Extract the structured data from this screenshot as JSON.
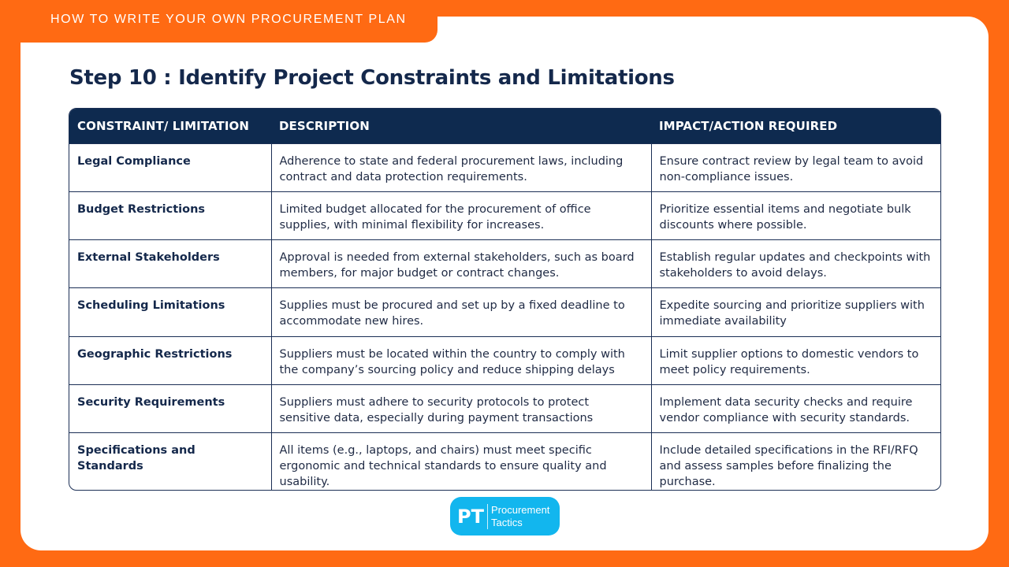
{
  "header": {
    "label": "HOW TO WRITE YOUR OWN PROCUREMENT PLAN"
  },
  "page": {
    "title": "Step 10 : Identify Project Constraints and Limitations"
  },
  "table": {
    "columns": [
      "CONSTRAINT/ LIMITATION",
      "DESCRIPTION",
      "IMPACT/ACTION REQUIRED"
    ],
    "rows": [
      [
        "Legal Compliance",
        "Adherence to state and federal procurement laws, including contract and data protection requirements.",
        "Ensure contract review by legal team to avoid non-compliance issues."
      ],
      [
        "Budget Restrictions",
        "Limited budget allocated for the procurement of office supplies, with minimal flexibility for increases.",
        "Prioritize essential items and negotiate bulk discounts where possible."
      ],
      [
        "External Stakeholders",
        "Approval is needed from external stakeholders, such as board members, for major budget or contract changes.",
        "Establish regular updates and checkpoints with stakeholders to avoid delays."
      ],
      [
        "Scheduling Limitations",
        "Supplies must be procured and set up by a fixed deadline to accommodate new hires.",
        "Expedite sourcing and prioritize suppliers with immediate availability"
      ],
      [
        "Geographic Restrictions",
        "Suppliers must be located within the country to comply with the company’s sourcing policy and reduce shipping delays",
        "Limit supplier options to domestic vendors to meet policy requirements."
      ],
      [
        "Security Requirements",
        "Suppliers must adhere to security protocols to protect sensitive data, especially during payment transactions",
        "Implement data security checks and require vendor compliance with security standards."
      ],
      [
        "Specifications and Standards",
        "All items (e.g., laptops, and chairs) must meet specific ergonomic and technical standards to ensure quality and usability.",
        "Include detailed specifications in the RFI/RFQ and assess samples before finalizing the purchase."
      ]
    ]
  },
  "logo": {
    "mark": "PT",
    "line1": "Procurement",
    "line2": "Tactics"
  },
  "colors": {
    "accent": "#FF6A13",
    "header_bg": "#0E2A4F",
    "title": "#14284B",
    "logo_bg": "#12B6EE"
  }
}
